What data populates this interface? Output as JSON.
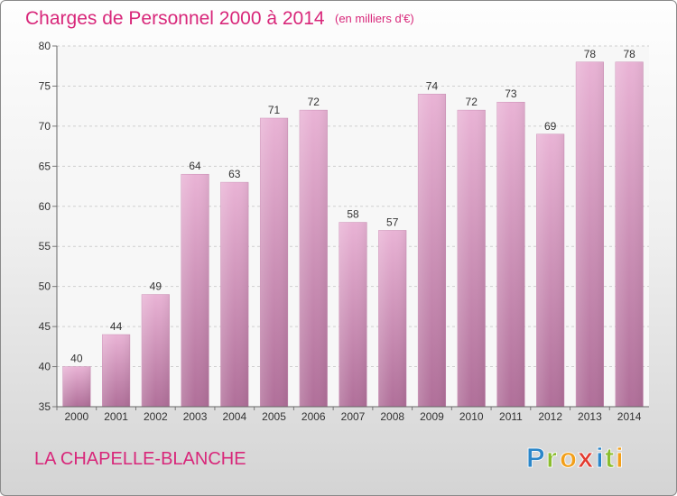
{
  "chart_data": {
    "type": "bar",
    "title": "Charges de Personnel 2000 à 2014",
    "subtitle": "(en milliers d'€)",
    "categories": [
      "2000",
      "2001",
      "2002",
      "2003",
      "2004",
      "2005",
      "2006",
      "2007",
      "2008",
      "2009",
      "2010",
      "2011",
      "2012",
      "2013",
      "2014"
    ],
    "values": [
      40,
      44,
      49,
      64,
      63,
      71,
      72,
      58,
      57,
      74,
      72,
      73,
      69,
      78,
      78
    ],
    "ylim": [
      35,
      80
    ],
    "yticks": [
      35,
      40,
      45,
      50,
      55,
      60,
      65,
      70,
      75,
      80
    ],
    "grid": true,
    "data_labels": true,
    "bar_color": "#d89cc1"
  },
  "footer": {
    "place_name": "LA CHAPELLE-BLANCHE"
  },
  "logo": {
    "letters": [
      "P",
      "r",
      "o",
      "x",
      "i",
      "t",
      "i"
    ],
    "colors": [
      "#2b86c9",
      "#8bbd2e",
      "#f29f1a",
      "#e23a2f",
      "#2b86c9",
      "#8bbd2e",
      "#f29f1a"
    ]
  }
}
